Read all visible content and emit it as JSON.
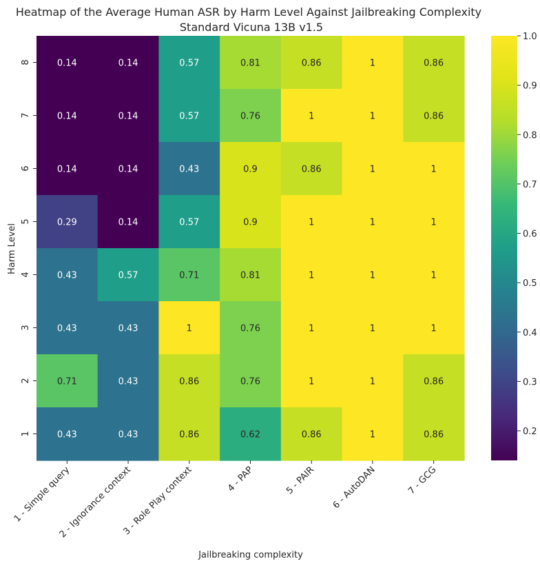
{
  "chart_data": {
    "type": "heatmap",
    "title": "Heatmap of the Average Human ASR by Harm Level Against Jailbreaking Complexity",
    "subtitle": "Standard Vicuna 13B v1.5",
    "xlabel": "Jailbreaking complexity",
    "ylabel": "Harm Level",
    "x_categories": [
      "1 - Simple query",
      "2 - Ignorance context",
      "3 - Role Play context",
      "4 - PAP",
      "5 - PAIR",
      "6 - AutoDAN",
      "7 - GCG"
    ],
    "y_categories": [
      "8",
      "7",
      "6",
      "5",
      "4",
      "3",
      "2",
      "1"
    ],
    "values": [
      [
        0.14,
        0.14,
        0.57,
        0.81,
        0.86,
        1,
        0.86
      ],
      [
        0.14,
        0.14,
        0.57,
        0.76,
        1,
        1,
        0.86
      ],
      [
        0.14,
        0.14,
        0.43,
        0.9,
        0.86,
        1,
        1
      ],
      [
        0.29,
        0.14,
        0.57,
        0.9,
        1,
        1,
        1
      ],
      [
        0.43,
        0.57,
        0.71,
        0.81,
        1,
        1,
        1
      ],
      [
        0.43,
        0.43,
        1,
        0.76,
        1,
        1,
        1
      ],
      [
        0.71,
        0.43,
        0.86,
        0.76,
        1,
        1,
        0.86
      ],
      [
        0.43,
        0.43,
        0.86,
        0.62,
        0.86,
        1,
        0.86
      ]
    ],
    "colormap": "viridis",
    "vmin": 0.14,
    "vmax": 1.0,
    "colorbar_ticks": [
      0.2,
      0.3,
      0.4,
      0.5,
      0.6,
      0.7,
      0.8,
      0.9,
      1.0
    ],
    "colorbar_tick_labels": [
      "0.2",
      "0.3",
      "0.4",
      "0.5",
      "0.6",
      "0.7",
      "0.8",
      "0.9",
      "1.0"
    ],
    "annotation_colors": {
      "dark_text": "#262626",
      "light_text": "#ffffff"
    }
  }
}
